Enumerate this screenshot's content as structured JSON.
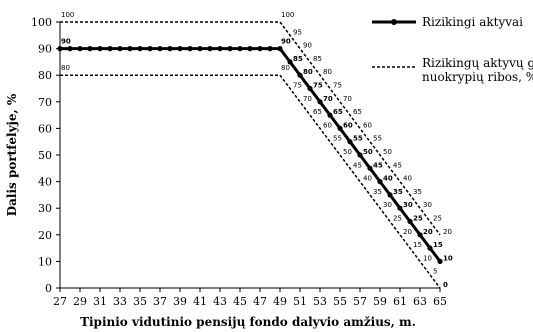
{
  "chart_data": {
    "type": "line",
    "title": "",
    "xlabel": "Tipinio vidutinio pensijų fondo dalyvio amžius, m.",
    "ylabel": "Dalis portfelyje, %",
    "xlim": [
      27,
      65
    ],
    "ylim": [
      0,
      100
    ],
    "x_ticks": [
      "27",
      "29",
      "31",
      "33",
      "35",
      "37",
      "39",
      "41",
      "43",
      "45",
      "47",
      "49",
      "51",
      "53",
      "55",
      "57",
      "59",
      "61",
      "63",
      "65"
    ],
    "y_ticks": [
      "0",
      "10",
      "20",
      "30",
      "40",
      "50",
      "60",
      "70",
      "80",
      "90",
      "100"
    ],
    "legend": {
      "position": "top-right",
      "entries": [
        {
          "label": "Rizikingi aktyvai",
          "style": "solid-marker"
        },
        {
          "label": "Rizikingų aktyvų galimų nuokrypių ribos, %",
          "style": "dashed"
        }
      ]
    },
    "series": [
      {
        "name": "Rizikingi aktyvai",
        "style": "solid-marker",
        "x": [
          27,
          28,
          29,
          30,
          31,
          32,
          33,
          34,
          35,
          36,
          37,
          38,
          39,
          40,
          41,
          42,
          43,
          44,
          45,
          46,
          47,
          48,
          49,
          50,
          51,
          52,
          53,
          54,
          55,
          56,
          57,
          58,
          59,
          60,
          61,
          62,
          63,
          64,
          65
        ],
        "y": [
          90,
          90,
          90,
          90,
          90,
          90,
          90,
          90,
          90,
          90,
          90,
          90,
          90,
          90,
          90,
          90,
          90,
          90,
          90,
          90,
          90,
          90,
          90,
          85,
          80,
          75,
          70,
          65,
          60,
          55,
          50,
          45,
          40,
          35,
          30,
          25,
          20,
          15,
          10
        ]
      },
      {
        "name": "upper-bound",
        "style": "dashed",
        "x": [
          27,
          49,
          65
        ],
        "y": [
          100,
          100,
          20
        ]
      },
      {
        "name": "lower-bound",
        "style": "dashed",
        "x": [
          27,
          49,
          65
        ],
        "y": [
          80,
          80,
          0
        ]
      }
    ],
    "data_labels": [
      {
        "x": 27,
        "y": 100,
        "text": "100",
        "weight": "normal",
        "pos": "above"
      },
      {
        "x": 49,
        "y": 100,
        "text": "100",
        "weight": "normal",
        "pos": "above"
      },
      {
        "x": 50,
        "y": 95,
        "text": "95",
        "weight": "normal",
        "pos": "right"
      },
      {
        "x": 51,
        "y": 90,
        "text": "90",
        "weight": "normal",
        "pos": "right"
      },
      {
        "x": 52,
        "y": 85,
        "text": "85",
        "weight": "normal",
        "pos": "right"
      },
      {
        "x": 53,
        "y": 80,
        "text": "80",
        "weight": "normal",
        "pos": "right"
      },
      {
        "x": 54,
        "y": 75,
        "text": "75",
        "weight": "normal",
        "pos": "right"
      },
      {
        "x": 55,
        "y": 70,
        "text": "70",
        "weight": "normal",
        "pos": "right"
      },
      {
        "x": 56,
        "y": 65,
        "text": "65",
        "weight": "normal",
        "pos": "right"
      },
      {
        "x": 57,
        "y": 60,
        "text": "60",
        "weight": "normal",
        "pos": "right"
      },
      {
        "x": 58,
        "y": 55,
        "text": "55",
        "weight": "normal",
        "pos": "right"
      },
      {
        "x": 59,
        "y": 50,
        "text": "50",
        "weight": "normal",
        "pos": "right"
      },
      {
        "x": 60,
        "y": 45,
        "text": "45",
        "weight": "normal",
        "pos": "right"
      },
      {
        "x": 61,
        "y": 40,
        "text": "40",
        "weight": "normal",
        "pos": "right"
      },
      {
        "x": 62,
        "y": 35,
        "text": "35",
        "weight": "normal",
        "pos": "right"
      },
      {
        "x": 63,
        "y": 30,
        "text": "30",
        "weight": "normal",
        "pos": "right"
      },
      {
        "x": 64,
        "y": 25,
        "text": "25",
        "weight": "normal",
        "pos": "right"
      },
      {
        "x": 65,
        "y": 20,
        "text": "20",
        "weight": "normal",
        "pos": "right"
      },
      {
        "x": 27,
        "y": 90,
        "text": "90",
        "weight": "bold",
        "pos": "above"
      },
      {
        "x": 49,
        "y": 90,
        "text": "90",
        "weight": "bold",
        "pos": "above"
      },
      {
        "x": 50,
        "y": 85,
        "text": "85",
        "weight": "bold",
        "pos": "right"
      },
      {
        "x": 51,
        "y": 80,
        "text": "80",
        "weight": "bold",
        "pos": "right"
      },
      {
        "x": 52,
        "y": 75,
        "text": "75",
        "weight": "bold",
        "pos": "right"
      },
      {
        "x": 53,
        "y": 70,
        "text": "70",
        "weight": "bold",
        "pos": "right"
      },
      {
        "x": 54,
        "y": 65,
        "text": "65",
        "weight": "bold",
        "pos": "right"
      },
      {
        "x": 55,
        "y": 60,
        "text": "60",
        "weight": "bold",
        "pos": "right"
      },
      {
        "x": 56,
        "y": 55,
        "text": "55",
        "weight": "bold",
        "pos": "right"
      },
      {
        "x": 57,
        "y": 50,
        "text": "50",
        "weight": "bold",
        "pos": "right"
      },
      {
        "x": 58,
        "y": 45,
        "text": "45",
        "weight": "bold",
        "pos": "right"
      },
      {
        "x": 59,
        "y": 40,
        "text": "40",
        "weight": "bold",
        "pos": "right"
      },
      {
        "x": 60,
        "y": 35,
        "text": "35",
        "weight": "bold",
        "pos": "right"
      },
      {
        "x": 61,
        "y": 30,
        "text": "30",
        "weight": "bold",
        "pos": "right"
      },
      {
        "x": 62,
        "y": 25,
        "text": "25",
        "weight": "bold",
        "pos": "right"
      },
      {
        "x": 63,
        "y": 20,
        "text": "20",
        "weight": "bold",
        "pos": "right"
      },
      {
        "x": 64,
        "y": 15,
        "text": "15",
        "weight": "bold",
        "pos": "right"
      },
      {
        "x": 65,
        "y": 10,
        "text": "10",
        "weight": "bold",
        "pos": "right"
      },
      {
        "x": 27,
        "y": 80,
        "text": "80",
        "weight": "normal",
        "pos": "above"
      },
      {
        "x": 49,
        "y": 80,
        "text": "80",
        "weight": "normal",
        "pos": "above"
      },
      {
        "x": 50,
        "y": 75,
        "text": "75",
        "weight": "normal",
        "pos": "right"
      },
      {
        "x": 51,
        "y": 70,
        "text": "70",
        "weight": "normal",
        "pos": "right"
      },
      {
        "x": 52,
        "y": 65,
        "text": "65",
        "weight": "normal",
        "pos": "right"
      },
      {
        "x": 53,
        "y": 60,
        "text": "60",
        "weight": "normal",
        "pos": "right"
      },
      {
        "x": 54,
        "y": 55,
        "text": "55",
        "weight": "normal",
        "pos": "right"
      },
      {
        "x": 55,
        "y": 50,
        "text": "50",
        "weight": "normal",
        "pos": "right"
      },
      {
        "x": 56,
        "y": 45,
        "text": "45",
        "weight": "normal",
        "pos": "right"
      },
      {
        "x": 57,
        "y": 40,
        "text": "40",
        "weight": "normal",
        "pos": "right"
      },
      {
        "x": 58,
        "y": 35,
        "text": "35",
        "weight": "normal",
        "pos": "right"
      },
      {
        "x": 59,
        "y": 30,
        "text": "30",
        "weight": "normal",
        "pos": "right"
      },
      {
        "x": 60,
        "y": 25,
        "text": "25",
        "weight": "normal",
        "pos": "right"
      },
      {
        "x": 61,
        "y": 20,
        "text": "20",
        "weight": "normal",
        "pos": "right"
      },
      {
        "x": 62,
        "y": 15,
        "text": "15",
        "weight": "normal",
        "pos": "right"
      },
      {
        "x": 63,
        "y": 10,
        "text": "10",
        "weight": "normal",
        "pos": "right"
      },
      {
        "x": 64,
        "y": 5,
        "text": "5",
        "weight": "normal",
        "pos": "right"
      },
      {
        "x": 65,
        "y": 0,
        "text": "0",
        "weight": "bold",
        "pos": "right"
      }
    ],
    "grid": false,
    "colors": {
      "line": "#000000",
      "background": "#ffffff"
    }
  }
}
